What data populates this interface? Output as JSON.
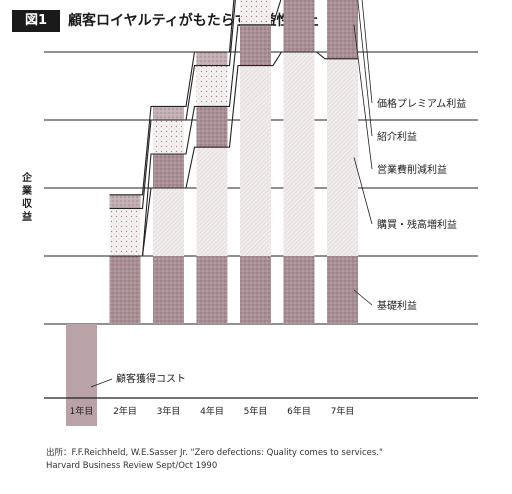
{
  "header": {
    "badge": "図1",
    "title": "顧客ロイヤルティがもたらす収益性向上"
  },
  "source": {
    "line1": "出所：F.F.Reichheld, W.E.Sasser Jr. \"Zero defections: Quality comes to services.\"",
    "line2": "Harvard Business Review Sept/Oct 1990"
  },
  "chart_data": {
    "type": "bar",
    "stacked": true,
    "title": "顧客ロイヤルティがもたらす収益性向上",
    "ylabel": "企業収益",
    "xlabel": "",
    "categories": [
      "1年目",
      "2年目",
      "3年目",
      "4年目",
      "5年目",
      "6年目",
      "7年目"
    ],
    "ylim": [
      -1.6,
      6.6
    ],
    "grid": true,
    "series": [
      {
        "name": "顧客獲得コスト",
        "values": [
          -1.5,
          0,
          0,
          0,
          0,
          0,
          0
        ],
        "color": "#b9a3a7",
        "pattern": "solid"
      },
      {
        "name": "基礎利益",
        "values": [
          0,
          1.0,
          1.0,
          1.0,
          1.0,
          1.0,
          1.0
        ],
        "color": "#a98f94",
        "pattern": "dots"
      },
      {
        "name": "購買・残高増利益",
        "values": [
          0,
          0,
          1.0,
          1.6,
          2.8,
          3.0,
          2.9
        ],
        "color": "#ece6e6",
        "pattern": "hatch"
      },
      {
        "name": "営業費削減利益",
        "values": [
          0,
          0,
          0.5,
          0.6,
          0.6,
          0.8,
          1.0
        ],
        "color": "#a98f94",
        "pattern": "dots"
      },
      {
        "name": "紹介利益",
        "values": [
          0,
          0.7,
          0.5,
          0.6,
          0.8,
          0.9,
          0.8
        ],
        "color": "#f3eeee",
        "pattern": "dots"
      },
      {
        "name": "価格プレミアム利益",
        "values": [
          0,
          0.2,
          0.2,
          0.2,
          0.3,
          0.4,
          0.6
        ],
        "color": "#b9a3a7",
        "pattern": "dots"
      }
    ]
  }
}
